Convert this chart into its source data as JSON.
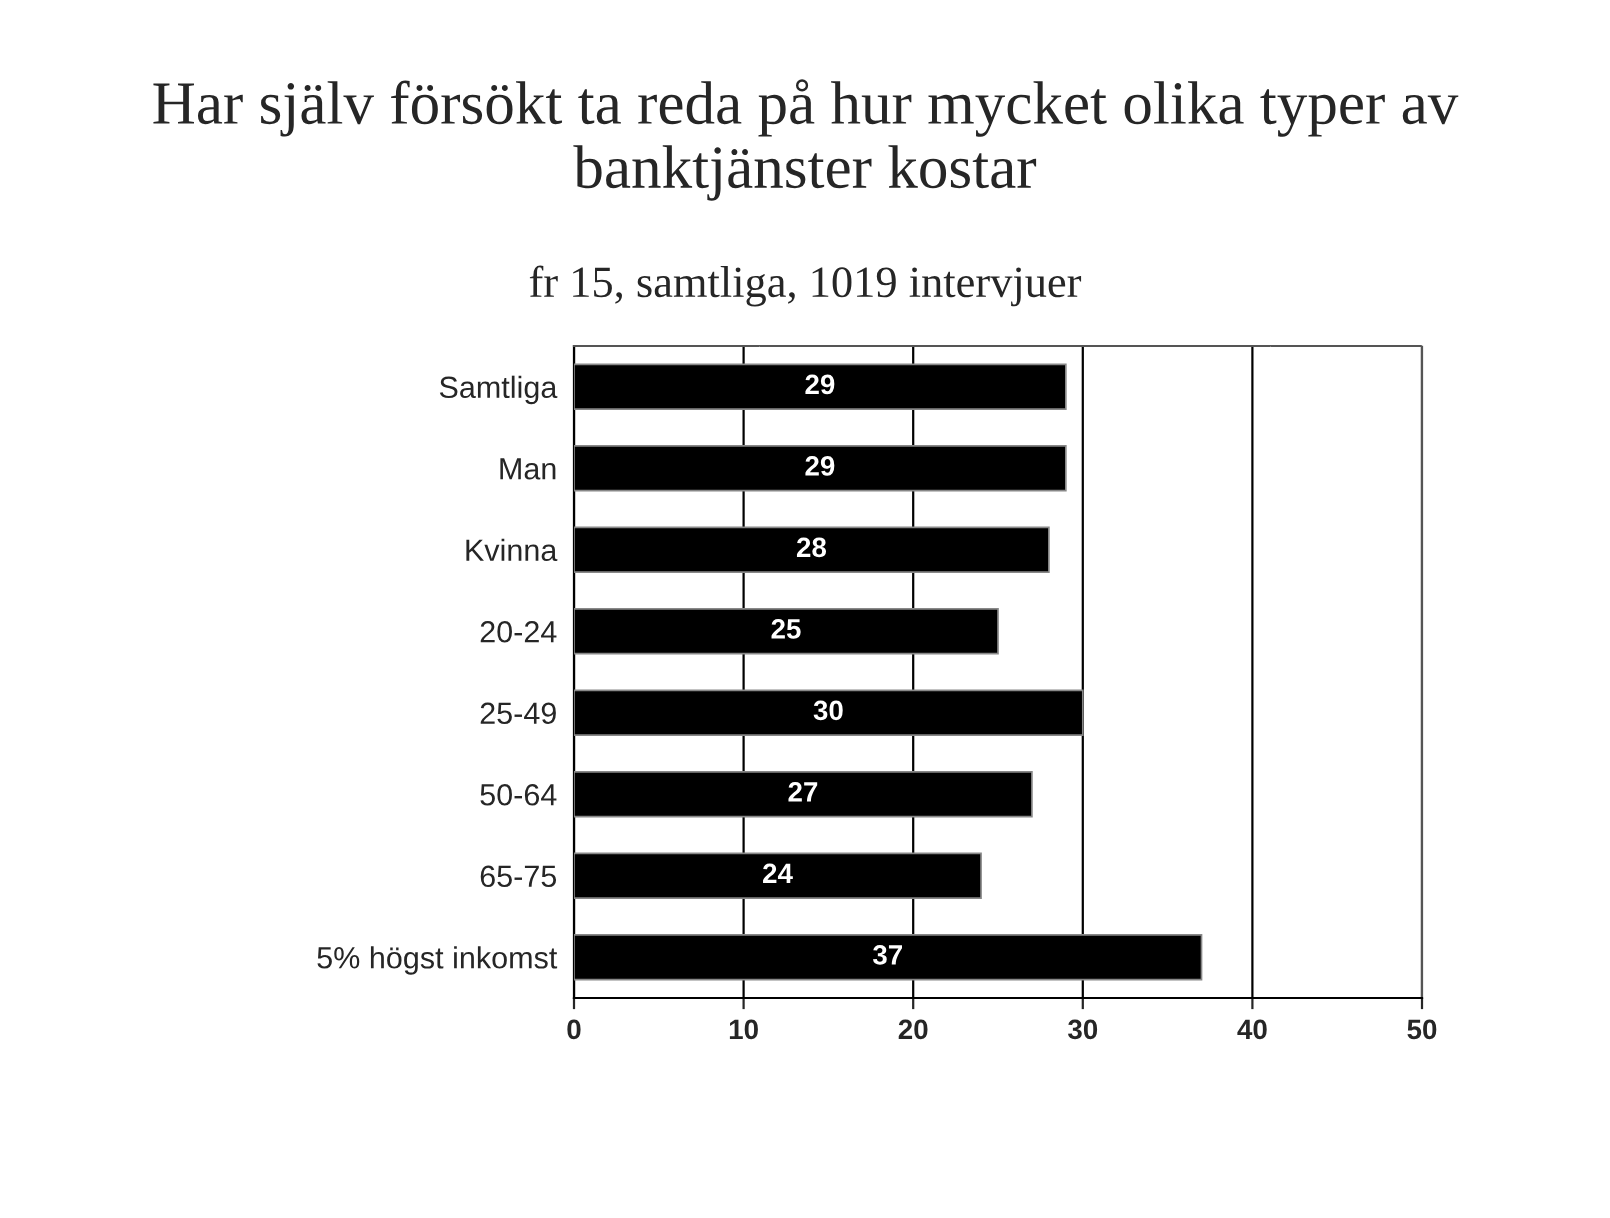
{
  "chart_data": {
    "type": "bar",
    "orientation": "horizontal",
    "title": "Har själv försökt ta reda på hur mycket olika typer av banktjänster kostar",
    "subtitle": "fr 15, samtliga, 1019 intervjuer",
    "categories": [
      "Samtliga",
      "Man",
      "Kvinna",
      "20-24",
      "25-49",
      "50-64",
      "65-75",
      "5% högst inkomst"
    ],
    "values": [
      29,
      29,
      28,
      25,
      30,
      27,
      24,
      37
    ],
    "color": "#000000",
    "xlim": [
      0,
      50
    ],
    "xticks": [
      0,
      10,
      20,
      30,
      40,
      50
    ],
    "grid": "x",
    "data_labels": true,
    "legend": false
  }
}
